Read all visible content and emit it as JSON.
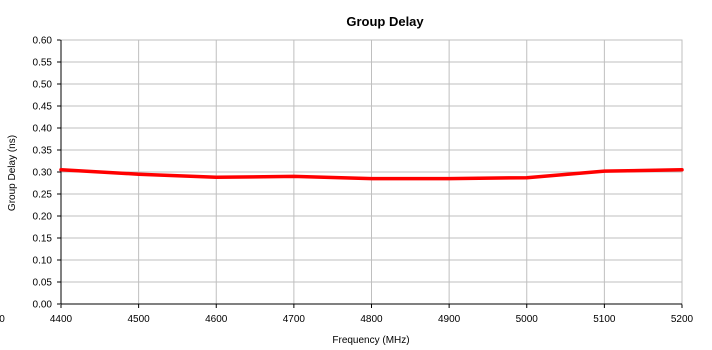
{
  "chart_data": {
    "type": "line",
    "title": "Group Delay",
    "xlabel": "Frequency (MHz)",
    "ylabel": "Group Delay (ns)",
    "xlim": [
      4400,
      5200
    ],
    "ylim": [
      0.0,
      0.6
    ],
    "x_ticks": [
      "4400",
      "4500",
      "4600",
      "4700",
      "4800",
      "4900",
      "5000",
      "5100",
      "5200"
    ],
    "y_ticks": [
      "0.00",
      "0.05",
      "0.10",
      "0.15",
      "0.20",
      "0.25",
      "0.30",
      "0.35",
      "0.40",
      "0.45",
      "0.50",
      "0.55",
      "0.60"
    ],
    "extra_x_tick": "0",
    "grid": true,
    "legend": "none",
    "colors": {
      "line": "#ff0000",
      "grid": "#bfbfbf",
      "axis": "#000000"
    },
    "series": [
      {
        "x": [
          4400,
          4500,
          4600,
          4700,
          4800,
          4900,
          5000,
          5100,
          5200
        ],
        "values": [
          0.305,
          0.295,
          0.288,
          0.29,
          0.285,
          0.285,
          0.287,
          0.302,
          0.305
        ]
      }
    ]
  }
}
